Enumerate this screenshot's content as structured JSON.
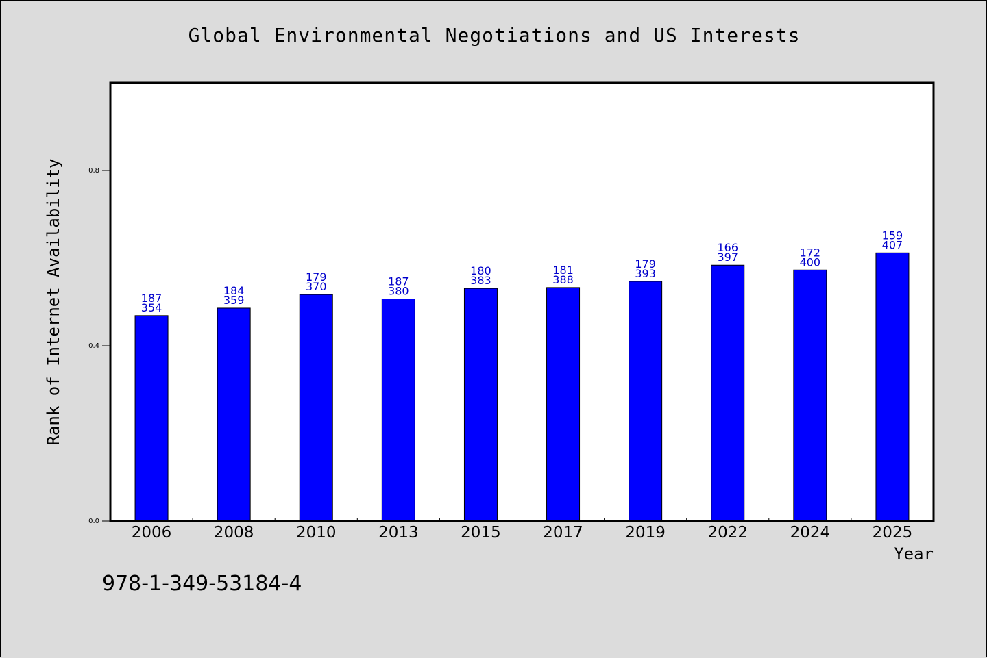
{
  "chart_data": {
    "type": "bar",
    "title": "Global Environmental Negotiations and US Interests",
    "xlabel": "Year",
    "ylabel": "Rank of Internet Availability",
    "categories": [
      "2006",
      "2008",
      "2010",
      "2013",
      "2015",
      "2017",
      "2019",
      "2022",
      "2024",
      "2025"
    ],
    "values": [
      0.469,
      0.486,
      0.517,
      0.507,
      0.531,
      0.533,
      0.547,
      0.584,
      0.573,
      0.612
    ],
    "annotations_top": [
      "187",
      "184",
      "179",
      "187",
      "180",
      "181",
      "179",
      "166",
      "172",
      "159"
    ],
    "annotations_bottom": [
      "354",
      "359",
      "370",
      "380",
      "383",
      "388",
      "393",
      "397",
      "400",
      "407"
    ],
    "ylim": [
      0,
      1.0
    ],
    "yticks": [
      0.0,
      0.4,
      0.8
    ],
    "ytick_labels": [
      "0.0",
      "0.4",
      "0.8"
    ],
    "grid": false,
    "bar_color": "#0000ff",
    "label_color": "#0000cc"
  },
  "footer": {
    "isbn": "978-1-349-53184-4"
  }
}
